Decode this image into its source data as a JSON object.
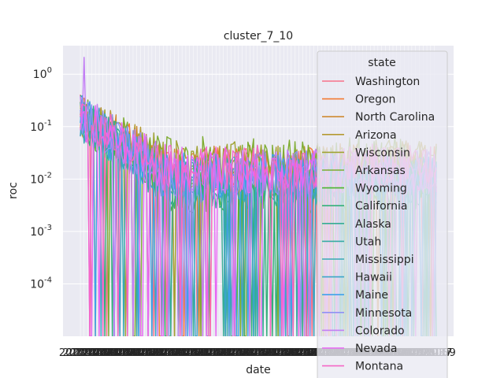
{
  "chart_data": {
    "type": "line",
    "title": "cluster_7_10",
    "xlabel": "date",
    "ylabel": "roc",
    "yscale": "log",
    "ylim": [
      1e-05,
      3.5
    ],
    "yticks": [
      {
        "value": 1,
        "label": "10^0"
      },
      {
        "value": 0.1,
        "label": "10^-1"
      },
      {
        "value": 0.01,
        "label": "10^-2"
      },
      {
        "value": 0.001,
        "label": "10^-3"
      },
      {
        "value": 0.0001,
        "label": "10^-4"
      }
    ],
    "x_tick_labels_note": "overlapping unreadable date labels",
    "grid": true,
    "legend": {
      "title": "state",
      "placement": "upper-right",
      "entries": [
        {
          "name": "Washington",
          "color": "#f77189"
        },
        {
          "name": "Oregon",
          "color": "#f37932"
        },
        {
          "name": "North Carolina",
          "color": "#cf8a31"
        },
        {
          "name": "Arizona",
          "color": "#b59a31"
        },
        {
          "name": "Wisconsin",
          "color": "#9fa331"
        },
        {
          "name": "Arkansas",
          "color": "#7eac31"
        },
        {
          "name": "Wyoming",
          "color": "#4bb431"
        },
        {
          "name": "California",
          "color": "#33b07a"
        },
        {
          "name": "Alaska",
          "color": "#35ad94"
        },
        {
          "name": "Utah",
          "color": "#36aba4"
        },
        {
          "name": "Mississippi",
          "color": "#38a9b5"
        },
        {
          "name": "Hawaii",
          "color": "#3aa6c8"
        },
        {
          "name": "Maine",
          "color": "#3ea1ea"
        },
        {
          "name": "Minnesota",
          "color": "#8f91f4"
        },
        {
          "name": "Colorado",
          "color": "#c27ef4"
        },
        {
          "name": "Nevada",
          "color": "#e866f4"
        },
        {
          "name": "Montana",
          "color": "#f567c6"
        }
      ]
    },
    "series_profile": {
      "n_points": 190,
      "start_level": 0.15,
      "end_level": 0.012,
      "decay_fraction": 0.25,
      "zero_dip_probability": 0.09
    }
  }
}
